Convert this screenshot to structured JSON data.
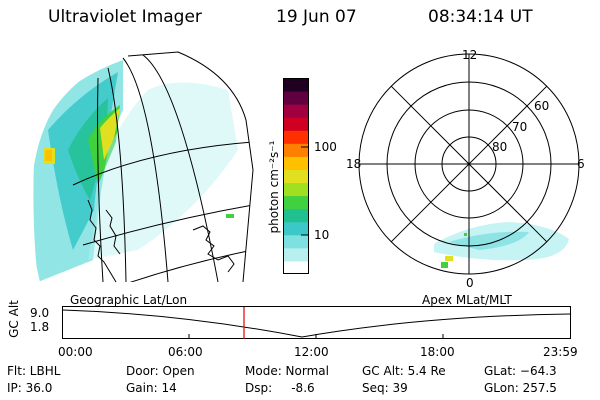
{
  "header": {
    "title": "Ultraviolet Imager",
    "date": "19 Jun 07",
    "time": "08:34:14 UT"
  },
  "colorbar": {
    "unit_label": "photon cm⁻²s⁻¹",
    "ticks": [
      "100",
      "10"
    ],
    "colors": [
      "#ffffff",
      "#b8f0f0",
      "#7fe0e0",
      "#3cc8c8",
      "#20c090",
      "#40d040",
      "#a0e020",
      "#e0e020",
      "#ffc000",
      "#ff8000",
      "#ff3000",
      "#d00020",
      "#a00040",
      "#600040",
      "#200020"
    ]
  },
  "polar": {
    "mlt_labels": {
      "top": "12",
      "left": "18",
      "right": "6",
      "bottom": "0"
    },
    "lat_labels": [
      "60",
      "70",
      "80"
    ]
  },
  "map_caption": "Geographic Lat/Lon",
  "polar_caption": "Apex MLat/MLT",
  "timeline": {
    "axis_label": "GC Alt",
    "y_ticks": [
      "9.0",
      "1.8"
    ],
    "x_ticks": [
      "00:00",
      "06:00",
      "12:00",
      "18:00",
      "23:59"
    ],
    "current_time_fraction": 0.357,
    "current_marker_color": "#e00000"
  },
  "info": {
    "flt": "Flt: LBHL",
    "ip": "IP: 36.0",
    "door": "Door: Open",
    "gain": "Gain: 14",
    "mode": "Mode: Normal",
    "dsp": "Dsp:     -8.6",
    "gcalt": "GC Alt: 5.4 Re",
    "seq": "Seq: 39",
    "glat": "GLat: −64.3",
    "glon": "GLon: 257.5"
  }
}
